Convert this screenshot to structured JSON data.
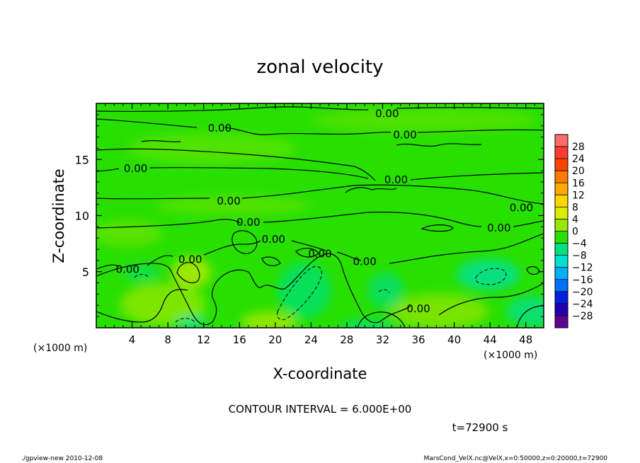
{
  "chart_data": {
    "type": "heatmap",
    "title": "zonal velocity",
    "xlabel": "X-coordinate",
    "ylabel": "Z-coordinate",
    "x_unit_label": "(×1000 m)",
    "y_unit_label": "(×1000 m)",
    "xlim": [
      0,
      50
    ],
    "ylim": [
      0,
      20
    ],
    "x_ticks": [
      4,
      8,
      12,
      16,
      20,
      24,
      28,
      32,
      36,
      40,
      44,
      48
    ],
    "y_ticks": [
      5,
      10,
      15
    ],
    "grid": false,
    "colorbar": {
      "placement": "right",
      "levels": [
        28,
        24,
        20,
        16,
        12,
        8,
        4,
        0,
        -4,
        -8,
        -12,
        -16,
        -20,
        -24,
        -28
      ],
      "labels": [
        "28",
        "24",
        "20",
        "16",
        "12",
        "8",
        "4",
        "0",
        "−4",
        "−8",
        "−12",
        "−16",
        "−20",
        "−24",
        "−28"
      ],
      "colors": [
        "#ff6a6a",
        "#ff3a30",
        "#ff4400",
        "#ff7a00",
        "#ffaa00",
        "#ffd800",
        "#d8ee00",
        "#9ae600",
        "#28e000",
        "#00e080",
        "#00e0d0",
        "#00b0ff",
        "#0070ff",
        "#0020e0",
        "#2000b0",
        "#600090"
      ]
    },
    "contour_interval": "CONTOUR INTERVAL = 6.000E+00",
    "contour_labels": [
      {
        "text": "0.00",
        "x": 32.5,
        "z": 19.1
      },
      {
        "text": "0.00",
        "x": 13.8,
        "z": 17.8
      },
      {
        "text": "0.00",
        "x": 34.5,
        "z": 17.2
      },
      {
        "text": "0.00",
        "x": 4.4,
        "z": 14.2
      },
      {
        "text": "0.00",
        "x": 33.5,
        "z": 13.2
      },
      {
        "text": "0.00",
        "x": 14.8,
        "z": 11.3
      },
      {
        "text": "0.00",
        "x": 47.5,
        "z": 10.7
      },
      {
        "text": "0.00",
        "x": 17.0,
        "z": 9.4
      },
      {
        "text": "0.00",
        "x": 45.0,
        "z": 8.9
      },
      {
        "text": "0.00",
        "x": 19.8,
        "z": 7.9
      },
      {
        "text": "0.00",
        "x": 25.0,
        "z": 6.6
      },
      {
        "text": "0.00",
        "x": 10.5,
        "z": 6.1
      },
      {
        "text": "0.00",
        "x": 30.0,
        "z": 5.9
      },
      {
        "text": "0.00",
        "x": 3.5,
        "z": 5.2
      },
      {
        "text": "0.00",
        "x": 36.0,
        "z": 1.7
      }
    ],
    "time_label": "t=72900 s"
  },
  "footer": {
    "left": "./gpview-new   2010-12-08",
    "right": "MarsCond_VelX.nc@VelX,x=0:50000,z=0:20000,t=72900"
  }
}
